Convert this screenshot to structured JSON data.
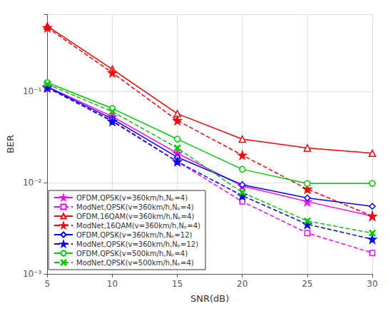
{
  "chart_data": {
    "type": "line",
    "xlabel": "SNR(dB)",
    "ylabel": "BER",
    "x": [
      5,
      10,
      15,
      20,
      25,
      30
    ],
    "series": [
      {
        "name": "OFDM,QPSK(v=360km/h,Nₚ=4)",
        "color": "#FF00FF",
        "marker": "star",
        "line_style": "solid",
        "values": [
          0.113,
          0.053,
          0.021,
          0.0092,
          0.0062,
          0.0043
        ]
      },
      {
        "name": "ModNet,QPSK(v=360km/h,Nₚ=4)",
        "color": "#FF00FF",
        "marker": "square",
        "line_style": "dashed",
        "values": [
          0.11,
          0.048,
          0.017,
          0.0062,
          0.0028,
          0.0017
        ]
      },
      {
        "name": "OFDM,16QAM(v=360km/h,Nₚ=4)",
        "color": "#FF0000",
        "marker": "triangle",
        "line_style": "solid",
        "values": [
          0.52,
          0.175,
          0.057,
          0.03,
          0.024,
          0.021
        ]
      },
      {
        "name": "ModNet,16QAM(v=360km/h,Nₚ=4)",
        "color": "#FF0000",
        "marker": "star",
        "line_style": "dashed",
        "values": [
          0.5,
          0.16,
          0.048,
          0.02,
          0.0085,
          0.0043
        ]
      },
      {
        "name": "OFDM,QPSK(v=360km/h,Nₚ=12)",
        "color": "#0000FF",
        "marker": "diamond",
        "line_style": "solid",
        "values": [
          0.112,
          0.05,
          0.019,
          0.0095,
          0.0068,
          0.0055
        ]
      },
      {
        "name": "ModNet,QPSK(v=360km/h,Nₚ=12)",
        "color": "#0000FF",
        "marker": "star",
        "line_style": "dashed",
        "values": [
          0.11,
          0.047,
          0.017,
          0.0072,
          0.0035,
          0.0024
        ]
      },
      {
        "name": "OFDM,QPSK(v=500km/h,Nₚ=4)",
        "color": "#00CC00",
        "marker": "circle",
        "line_style": "solid",
        "values": [
          0.125,
          0.065,
          0.03,
          0.014,
          0.0098,
          0.0098
        ]
      },
      {
        "name": "ModNet,QPSK(v=500km/h,Nₚ=4)",
        "color": "#00CC00",
        "marker": "x",
        "line_style": "dashed",
        "values": [
          0.12,
          0.06,
          0.024,
          0.0078,
          0.0038,
          0.0028
        ]
      }
    ],
    "xlim": [
      5,
      30
    ],
    "xticks": [
      5,
      10,
      15,
      20,
      25,
      30
    ],
    "ylim": [
      0.001,
      0.7
    ],
    "yticks": [
      {
        "value": 0.001,
        "label": "10⁻³"
      },
      {
        "value": 0.01,
        "label": "10⁻²"
      },
      {
        "value": 0.1,
        "label": "10⁻¹"
      }
    ],
    "log": "y",
    "grid": true,
    "legend": "lower left"
  }
}
